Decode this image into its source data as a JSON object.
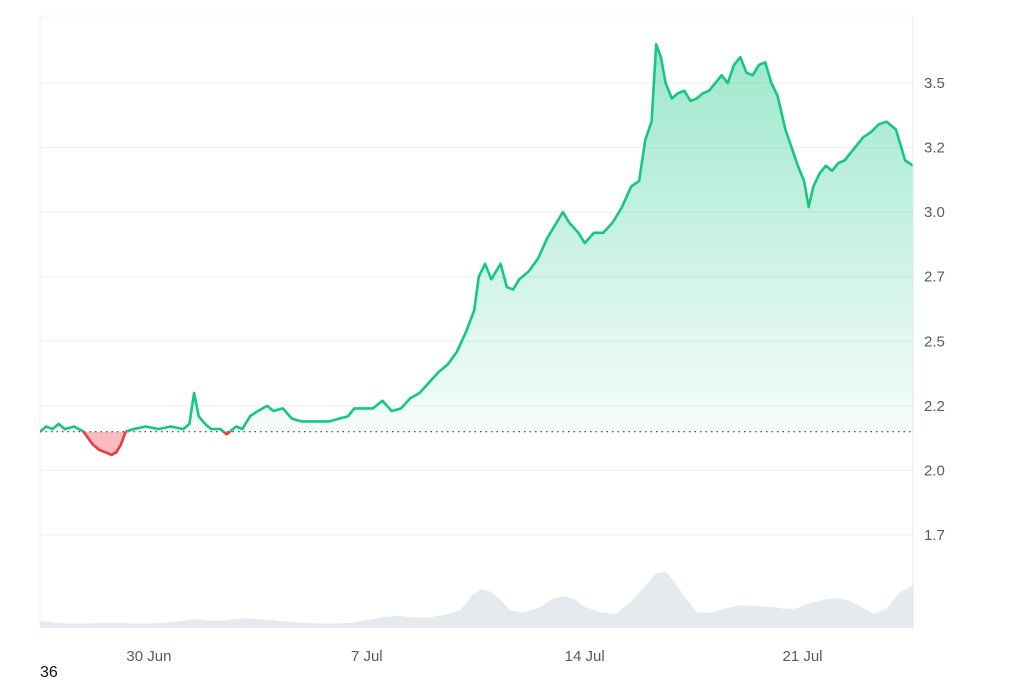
{
  "chart_data": {
    "type": "area",
    "baseline": 2.15,
    "ylim": [
      1.55,
      3.7
    ],
    "y_ticks": [
      {
        "value": 3.5,
        "label": "3.5"
      },
      {
        "value": 3.25,
        "label": "3.2"
      },
      {
        "value": 3.0,
        "label": "3.0"
      },
      {
        "value": 2.75,
        "label": "2.7"
      },
      {
        "value": 2.5,
        "label": "2.5"
      },
      {
        "value": 2.25,
        "label": "2.2"
      },
      {
        "value": 2.0,
        "label": "2.0"
      },
      {
        "value": 1.75,
        "label": "1.7"
      }
    ],
    "xlim": [
      26.5,
      24.55
    ],
    "x_ticks": [
      {
        "value": 30,
        "label": "30 Jun"
      },
      {
        "value": 37,
        "label": "7 Jul"
      },
      {
        "value": 44,
        "label": "14 Jul"
      },
      {
        "value": 51,
        "label": "21 Jul"
      }
    ],
    "colors": {
      "up": "#16c784",
      "down": "#ea3943",
      "volume": "#e6e9ee",
      "grid": "#eef0f3"
    },
    "series": [
      {
        "values": [
          [
            26.5,
            2.15
          ],
          [
            26.7,
            2.17
          ],
          [
            26.9,
            2.16
          ],
          [
            27.1,
            2.18
          ],
          [
            27.3,
            2.16
          ],
          [
            27.6,
            2.17
          ],
          [
            27.9,
            2.15
          ],
          [
            28.2,
            2.1
          ],
          [
            28.4,
            2.08
          ],
          [
            28.6,
            2.07
          ],
          [
            28.8,
            2.06
          ],
          [
            28.95,
            2.07
          ],
          [
            29.1,
            2.1
          ],
          [
            29.25,
            2.15
          ],
          [
            29.5,
            2.16
          ],
          [
            29.9,
            2.17
          ],
          [
            30.3,
            2.16
          ],
          [
            30.7,
            2.17
          ],
          [
            31.1,
            2.16
          ],
          [
            31.3,
            2.18
          ],
          [
            31.45,
            2.3
          ],
          [
            31.6,
            2.21
          ],
          [
            31.8,
            2.18
          ],
          [
            32.0,
            2.16
          ],
          [
            32.3,
            2.16
          ],
          [
            32.5,
            2.14
          ],
          [
            32.8,
            2.17
          ],
          [
            33.0,
            2.16
          ],
          [
            33.25,
            2.21
          ],
          [
            33.5,
            2.23
          ],
          [
            33.8,
            2.25
          ],
          [
            34.0,
            2.23
          ],
          [
            34.3,
            2.24
          ],
          [
            34.6,
            2.2
          ],
          [
            34.9,
            2.19
          ],
          [
            35.2,
            2.19
          ],
          [
            35.5,
            2.19
          ],
          [
            35.8,
            2.19
          ],
          [
            36.1,
            2.2
          ],
          [
            36.4,
            2.21
          ],
          [
            36.6,
            2.24
          ],
          [
            36.9,
            2.24
          ],
          [
            37.2,
            2.24
          ],
          [
            37.5,
            2.27
          ],
          [
            37.8,
            2.23
          ],
          [
            38.1,
            2.24
          ],
          [
            38.4,
            2.28
          ],
          [
            38.7,
            2.3
          ],
          [
            39.0,
            2.34
          ],
          [
            39.3,
            2.38
          ],
          [
            39.6,
            2.41
          ],
          [
            39.9,
            2.46
          ],
          [
            40.2,
            2.54
          ],
          [
            40.45,
            2.62
          ],
          [
            40.6,
            2.75
          ],
          [
            40.8,
            2.8
          ],
          [
            41.0,
            2.74
          ],
          [
            41.3,
            2.8
          ],
          [
            41.5,
            2.71
          ],
          [
            41.7,
            2.7
          ],
          [
            41.9,
            2.74
          ],
          [
            42.2,
            2.77
          ],
          [
            42.5,
            2.82
          ],
          [
            42.8,
            2.9
          ],
          [
            43.1,
            2.96
          ],
          [
            43.3,
            3.0
          ],
          [
            43.5,
            2.96
          ],
          [
            43.8,
            2.92
          ],
          [
            44.0,
            2.88
          ],
          [
            44.3,
            2.92
          ],
          [
            44.6,
            2.92
          ],
          [
            44.9,
            2.96
          ],
          [
            45.2,
            3.02
          ],
          [
            45.5,
            3.1
          ],
          [
            45.75,
            3.12
          ],
          [
            45.95,
            3.28
          ],
          [
            46.15,
            3.35
          ],
          [
            46.3,
            3.65
          ],
          [
            46.45,
            3.6
          ],
          [
            46.6,
            3.5
          ],
          [
            46.8,
            3.44
          ],
          [
            47.0,
            3.46
          ],
          [
            47.2,
            3.47
          ],
          [
            47.4,
            3.43
          ],
          [
            47.6,
            3.44
          ],
          [
            47.8,
            3.46
          ],
          [
            48.0,
            3.47
          ],
          [
            48.2,
            3.5
          ],
          [
            48.4,
            3.53
          ],
          [
            48.6,
            3.5
          ],
          [
            48.8,
            3.57
          ],
          [
            49.0,
            3.6
          ],
          [
            49.2,
            3.54
          ],
          [
            49.4,
            3.53
          ],
          [
            49.6,
            3.57
          ],
          [
            49.8,
            3.58
          ],
          [
            50.0,
            3.5
          ],
          [
            50.2,
            3.45
          ],
          [
            50.45,
            3.32
          ],
          [
            50.65,
            3.25
          ],
          [
            50.85,
            3.18
          ],
          [
            51.05,
            3.12
          ],
          [
            51.2,
            3.02
          ],
          [
            51.35,
            3.1
          ],
          [
            51.55,
            3.15
          ],
          [
            51.75,
            3.18
          ],
          [
            51.95,
            3.16
          ],
          [
            52.15,
            3.19
          ],
          [
            52.35,
            3.2
          ],
          [
            52.55,
            3.23
          ],
          [
            52.75,
            3.26
          ],
          [
            52.95,
            3.29
          ],
          [
            53.2,
            3.31
          ],
          [
            53.45,
            3.34
          ],
          [
            53.7,
            3.35
          ],
          [
            54.0,
            3.32
          ],
          [
            54.3,
            3.2
          ],
          [
            54.55,
            3.18
          ]
        ]
      }
    ],
    "volume_values": [
      [
        26.5,
        0.08
      ],
      [
        27.0,
        0.06
      ],
      [
        27.5,
        0.05
      ],
      [
        28.0,
        0.05
      ],
      [
        28.5,
        0.06
      ],
      [
        29.0,
        0.06
      ],
      [
        29.5,
        0.05
      ],
      [
        30.0,
        0.05
      ],
      [
        30.5,
        0.06
      ],
      [
        31.0,
        0.08
      ],
      [
        31.5,
        0.1
      ],
      [
        32.0,
        0.08
      ],
      [
        32.5,
        0.09
      ],
      [
        33.0,
        0.11
      ],
      [
        33.5,
        0.1
      ],
      [
        34.0,
        0.09
      ],
      [
        34.5,
        0.07
      ],
      [
        35.0,
        0.06
      ],
      [
        35.5,
        0.05
      ],
      [
        36.0,
        0.05
      ],
      [
        36.5,
        0.06
      ],
      [
        37.0,
        0.09
      ],
      [
        37.5,
        0.12
      ],
      [
        38.0,
        0.14
      ],
      [
        38.5,
        0.12
      ],
      [
        39.0,
        0.12
      ],
      [
        39.5,
        0.15
      ],
      [
        40.0,
        0.2
      ],
      [
        40.4,
        0.38
      ],
      [
        40.7,
        0.44
      ],
      [
        41.0,
        0.41
      ],
      [
        41.3,
        0.32
      ],
      [
        41.6,
        0.2
      ],
      [
        42.0,
        0.18
      ],
      [
        42.3,
        0.2
      ],
      [
        42.6,
        0.24
      ],
      [
        43.0,
        0.34
      ],
      [
        43.4,
        0.36
      ],
      [
        43.7,
        0.32
      ],
      [
        44.0,
        0.24
      ],
      [
        44.5,
        0.18
      ],
      [
        45.0,
        0.16
      ],
      [
        45.5,
        0.3
      ],
      [
        46.0,
        0.5
      ],
      [
        46.3,
        0.62
      ],
      [
        46.6,
        0.64
      ],
      [
        46.9,
        0.52
      ],
      [
        47.2,
        0.36
      ],
      [
        47.6,
        0.18
      ],
      [
        48.0,
        0.17
      ],
      [
        48.5,
        0.22
      ],
      [
        49.0,
        0.26
      ],
      [
        49.5,
        0.25
      ],
      [
        50.0,
        0.24
      ],
      [
        50.4,
        0.22
      ],
      [
        50.8,
        0.22
      ],
      [
        51.2,
        0.28
      ],
      [
        51.7,
        0.32
      ],
      [
        52.1,
        0.34
      ],
      [
        52.5,
        0.31
      ],
      [
        52.9,
        0.24
      ],
      [
        53.3,
        0.16
      ],
      [
        53.7,
        0.22
      ],
      [
        54.1,
        0.4
      ],
      [
        54.55,
        0.48
      ]
    ]
  },
  "footer": {
    "label": "36"
  }
}
